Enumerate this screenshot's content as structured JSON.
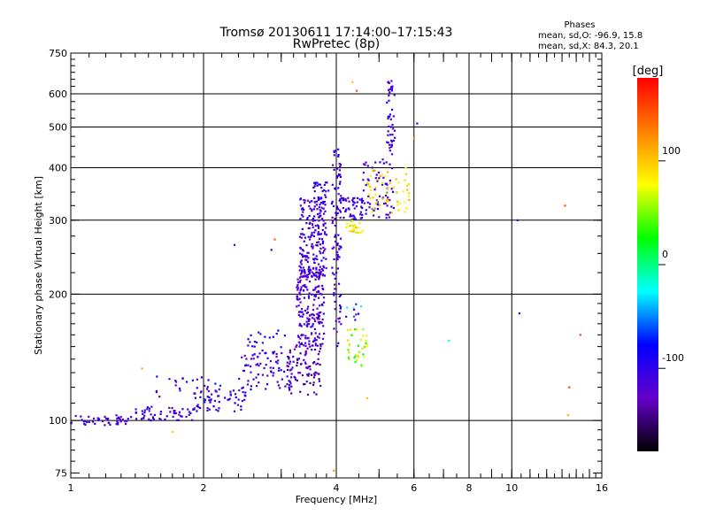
{
  "chart_data": {
    "type": "scatter",
    "title_line1": "Tromsø 20130611 17:14:00–17:15:43",
    "title_line2": "RwPretec (8p)",
    "xlabel": "Frequency [MHz]",
    "ylabel": "Stationary phase Virtual Height [km]",
    "x_scale": "log",
    "y_scale": "log",
    "xlim": [
      1,
      16
    ],
    "ylim": [
      73,
      750
    ],
    "x_ticks": [
      1,
      2,
      4,
      6,
      8,
      10,
      16
    ],
    "y_ticks": [
      75,
      100,
      200,
      300,
      400,
      500,
      600,
      750
    ],
    "x_grid": [
      2,
      4,
      6,
      8,
      10
    ],
    "y_grid": [
      100,
      200,
      300,
      400,
      500,
      600
    ],
    "stats": {
      "heading": "Phases",
      "line_o": "mean, sd,O: -96.9, 15.8",
      "line_x": "mean, sd,X:  84.3, 20.1"
    },
    "colorbar": {
      "label": "[deg]",
      "range": [
        -180,
        180
      ],
      "ticks": [
        100,
        0,
        -100
      ],
      "colors": [
        "#ff0000",
        "#ff8000",
        "#ffff00",
        "#00ff00",
        "#00ffff",
        "#0000ff",
        "#6600cc",
        "#000000"
      ]
    },
    "clusters": [
      {
        "x": [
          1.0,
          1.35
        ],
        "y": [
          97,
          103
        ],
        "n": 45,
        "phase": -110,
        "spread": 20
      },
      {
        "x": [
          1.35,
          1.9
        ],
        "y": [
          100,
          108
        ],
        "n": 55,
        "phase": -110,
        "spread": 20
      },
      {
        "x": [
          1.9,
          2.5
        ],
        "y": [
          105,
          120
        ],
        "n": 55,
        "phase": -105,
        "spread": 20
      },
      {
        "x": [
          1.55,
          2.2
        ],
        "y": [
          112,
          128
        ],
        "n": 30,
        "phase": -100,
        "spread": 40
      },
      {
        "x": [
          2.4,
          3.2
        ],
        "y": [
          118,
          145
        ],
        "n": 70,
        "phase": -110,
        "spread": 25
      },
      {
        "x": [
          2.5,
          3.1
        ],
        "y": [
          140,
          165
        ],
        "n": 30,
        "phase": -100,
        "spread": 30
      },
      {
        "x": [
          3.1,
          3.7
        ],
        "y": [
          115,
          150
        ],
        "n": 80,
        "phase": -130,
        "spread": 25
      },
      {
        "x": [
          3.25,
          3.75
        ],
        "y": [
          150,
          230
        ],
        "n": 200,
        "phase": -115,
        "spread": 20
      },
      {
        "x": [
          3.3,
          3.8
        ],
        "y": [
          220,
          340
        ],
        "n": 200,
        "phase": -110,
        "spread": 20
      },
      {
        "x": [
          3.55,
          3.85
        ],
        "y": [
          330,
          370
        ],
        "n": 25,
        "phase": -100,
        "spread": 20
      },
      {
        "x": [
          3.9,
          4.1
        ],
        "y": [
          150,
          450
        ],
        "n": 90,
        "phase": -110,
        "spread": 25
      },
      {
        "x": [
          4.0,
          4.6
        ],
        "y": [
          300,
          340
        ],
        "n": 55,
        "phase": -105,
        "spread": 20
      },
      {
        "x": [
          4.2,
          4.6
        ],
        "y": [
          280,
          300
        ],
        "n": 25,
        "phase": 85,
        "spread": 25
      },
      {
        "x": [
          4.6,
          5.4
        ],
        "y": [
          300,
          420
        ],
        "n": 70,
        "phase": -105,
        "spread": 20
      },
      {
        "x": [
          5.2,
          5.45
        ],
        "y": [
          430,
          650
        ],
        "n": 45,
        "phase": -110,
        "spread": 15
      },
      {
        "x": [
          4.7,
          5.9
        ],
        "y": [
          310,
          400
        ],
        "n": 55,
        "phase": 90,
        "spread": 20
      },
      {
        "x": [
          4.2,
          4.7
        ],
        "y": [
          135,
          165
        ],
        "n": 35,
        "phase": 60,
        "spread": 40
      },
      {
        "x": [
          4.0,
          4.6
        ],
        "y": [
          170,
          200
        ],
        "n": 12,
        "phase": -80,
        "spread": 60
      }
    ],
    "isolated_points": [
      {
        "x": 10.3,
        "y": 300,
        "phase": -110
      },
      {
        "x": 10.4,
        "y": 180,
        "phase": -105
      },
      {
        "x": 7.2,
        "y": 155,
        "phase": -20
      },
      {
        "x": 13.2,
        "y": 325,
        "phase": 150
      },
      {
        "x": 13.5,
        "y": 120,
        "phase": 150
      },
      {
        "x": 13.4,
        "y": 103,
        "phase": 110
      },
      {
        "x": 14.3,
        "y": 160,
        "phase": 150
      },
      {
        "x": 1.7,
        "y": 94,
        "phase": 100
      },
      {
        "x": 2.35,
        "y": 262,
        "phase": -110
      },
      {
        "x": 2.85,
        "y": 255,
        "phase": -105
      },
      {
        "x": 2.9,
        "y": 270,
        "phase": 140
      },
      {
        "x": 4.35,
        "y": 640,
        "phase": 100
      },
      {
        "x": 4.45,
        "y": 610,
        "phase": 150
      },
      {
        "x": 6.0,
        "y": 470,
        "phase": 120
      },
      {
        "x": 6.1,
        "y": 510,
        "phase": -110
      },
      {
        "x": 3.95,
        "y": 76,
        "phase": 120
      },
      {
        "x": 4.7,
        "y": 113,
        "phase": 100
      },
      {
        "x": 1.45,
        "y": 133,
        "phase": 110
      }
    ]
  }
}
